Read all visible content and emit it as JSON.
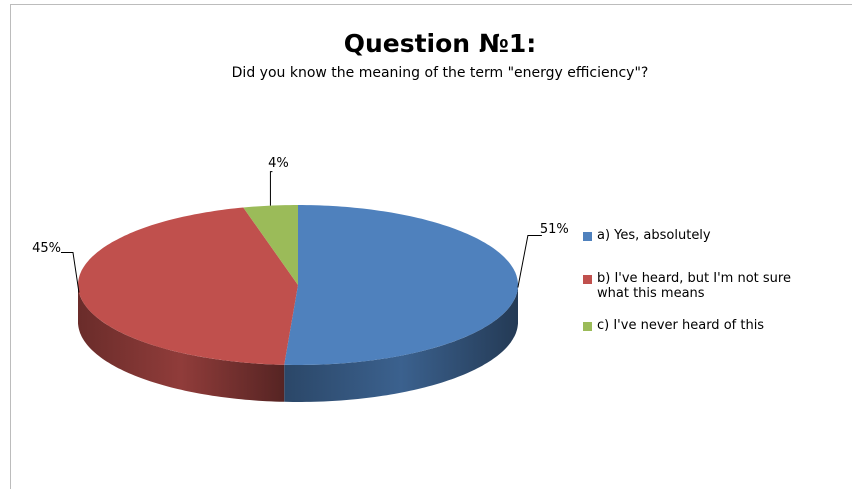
{
  "chart_data": {
    "type": "pie3d",
    "title": "Question №1:",
    "subtitle": "Did you know the meaning of the term \"energy efficiency\"?",
    "categories": [
      "a) Yes, absolutely",
      "b) I've heard, but I'm not sure what this means",
      "c) I've never heard of this"
    ],
    "values": [
      51,
      45,
      4
    ],
    "value_labels": [
      "51%",
      "45%",
      "4%"
    ],
    "colors": [
      "#4f81bd",
      "#c0504d",
      "#9bbb59"
    ],
    "legend": "right"
  }
}
